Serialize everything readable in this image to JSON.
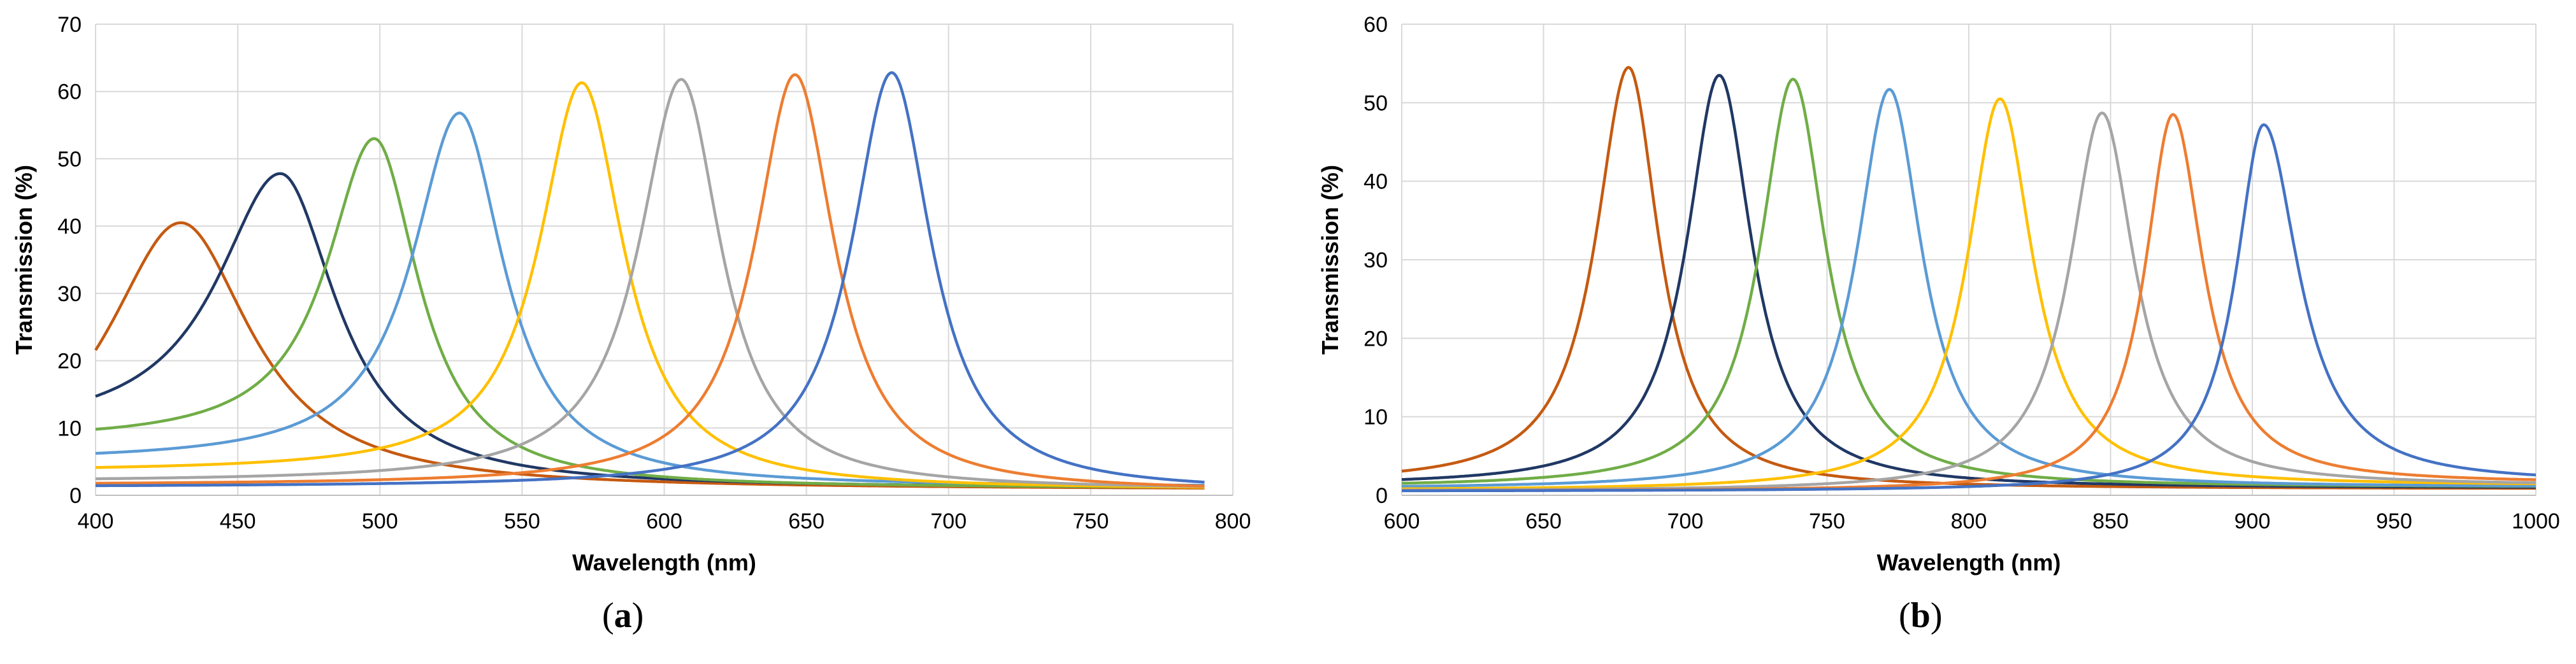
{
  "chart_data": [
    {
      "type": "line",
      "panel_label": "(a)",
      "xlabel": "Wavelength (nm)",
      "ylabel": "Transmission (%)",
      "xlim": [
        400,
        800
      ],
      "ylim": [
        0,
        70
      ],
      "xticks": [
        400,
        450,
        500,
        550,
        600,
        650,
        700,
        750,
        800
      ],
      "yticks": [
        0,
        10,
        20,
        30,
        40,
        50,
        60,
        70
      ],
      "grid": true,
      "legend": "none",
      "x_end": 790,
      "series": [
        {
          "color": "#C55A11",
          "peak_x": 430,
          "peak_y": 40.5,
          "hwhm_left": 32,
          "hwhm_right": 30,
          "base_left": 0,
          "base_right": 0.8
        },
        {
          "color": "#203864",
          "peak_x": 465,
          "peak_y": 47.8,
          "hwhm_left": 27,
          "hwhm_right": 24,
          "base_left": 9,
          "base_right": 1.0
        },
        {
          "color": "#70AD47",
          "peak_x": 498,
          "peak_y": 53,
          "hwhm_left": 20,
          "hwhm_right": 19,
          "base_left": 8,
          "base_right": 1.0
        },
        {
          "color": "#5B9BD5",
          "peak_x": 528,
          "peak_y": 56.8,
          "hwhm_left": 20,
          "hwhm_right": 19,
          "base_left": 5,
          "base_right": 1.2
        },
        {
          "color": "#FFC000",
          "peak_x": 571,
          "peak_y": 61.3,
          "hwhm_left": 18,
          "hwhm_right": 18,
          "base_left": 3.5,
          "base_right": 0.8
        },
        {
          "color": "#A5A5A5",
          "peak_x": 606,
          "peak_y": 61.8,
          "hwhm_left": 18,
          "hwhm_right": 17,
          "base_left": 2,
          "base_right": 0.8
        },
        {
          "color": "#ED7D31",
          "peak_x": 646,
          "peak_y": 62.5,
          "hwhm_left": 17,
          "hwhm_right": 17,
          "base_left": 1.5,
          "base_right": 0.5
        },
        {
          "color": "#4472C4",
          "peak_x": 680,
          "peak_y": 62.8,
          "hwhm_left": 17,
          "hwhm_right": 17,
          "base_left": 1.2,
          "base_right": 0.5
        }
      ]
    },
    {
      "type": "line",
      "panel_label": "(b)",
      "xlabel": "Wavelength (nm)",
      "ylabel": "Transmission (%)",
      "xlim": [
        600,
        1000
      ],
      "ylim": [
        0,
        60
      ],
      "xticks": [
        600,
        650,
        700,
        750,
        800,
        850,
        900,
        950,
        1000
      ],
      "yticks": [
        0,
        10,
        20,
        30,
        40,
        50,
        60
      ],
      "grid": true,
      "legend": "none",
      "x_end": 1000,
      "series": [
        {
          "color": "#C55A11",
          "peak_x": 680,
          "peak_y": 54.5,
          "hwhm_left": 14,
          "hwhm_right": 13,
          "base_left": 1.5,
          "base_right": 0.8
        },
        {
          "color": "#203864",
          "peak_x": 712,
          "peak_y": 53.5,
          "hwhm_left": 14,
          "hwhm_right": 14,
          "base_left": 1.2,
          "base_right": 0.9
        },
        {
          "color": "#70AD47",
          "peak_x": 738,
          "peak_y": 53,
          "hwhm_left": 14,
          "hwhm_right": 14,
          "base_left": 1.0,
          "base_right": 1.0
        },
        {
          "color": "#5B9BD5",
          "peak_x": 772,
          "peak_y": 51.7,
          "hwhm_left": 14,
          "hwhm_right": 14,
          "base_left": 0.8,
          "base_right": 1.0
        },
        {
          "color": "#FFC000",
          "peak_x": 811,
          "peak_y": 50.5,
          "hwhm_left": 14,
          "hwhm_right": 14,
          "base_left": 0.6,
          "base_right": 1.2
        },
        {
          "color": "#A5A5A5",
          "peak_x": 847,
          "peak_y": 48.7,
          "hwhm_left": 14,
          "hwhm_right": 14,
          "base_left": 0.5,
          "base_right": 1.2
        },
        {
          "color": "#ED7D31",
          "peak_x": 872,
          "peak_y": 48.5,
          "hwhm_left": 12,
          "hwhm_right": 13,
          "base_left": 0.5,
          "base_right": 1.5
        },
        {
          "color": "#4472C4",
          "peak_x": 904,
          "peak_y": 47.2,
          "hwhm_left": 12,
          "hwhm_right": 15,
          "base_left": 0.5,
          "base_right": 1.5
        }
      ]
    }
  ]
}
